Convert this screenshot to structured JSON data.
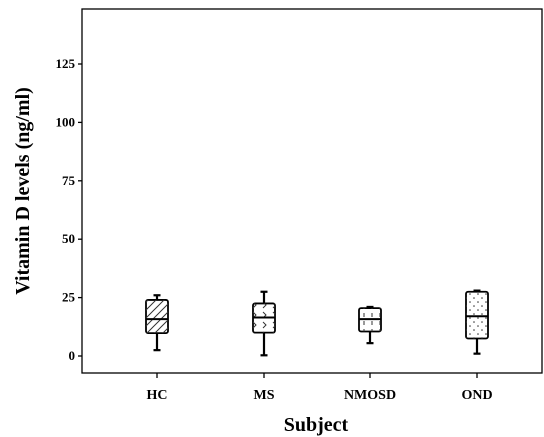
{
  "chart_data": {
    "type": "box",
    "title": "",
    "xlabel": "Subject",
    "ylabel": "Vitamin D levels (ng/ml)",
    "ylim": [
      -6,
      147
    ],
    "yticks": [
      0,
      25,
      50,
      75,
      100,
      125
    ],
    "ytick_labels": [
      "0",
      "25",
      "50",
      "75",
      "100",
      "125"
    ],
    "grid": false,
    "legend": "none",
    "categories": [
      "HC",
      "MS",
      "NMOSD",
      "OND"
    ],
    "boxes": [
      {
        "category": "HC",
        "min": 2.5,
        "q1": 9.8,
        "median": 15.8,
        "q3": 24.0,
        "max": 26.0,
        "pattern": "hatch"
      },
      {
        "category": "MS",
        "min": 0.3,
        "q1": 10.0,
        "median": 16.5,
        "q3": 22.5,
        "max": 27.5,
        "pattern": "chevron"
      },
      {
        "category": "NMOSD",
        "min": 5.5,
        "q1": 10.5,
        "median": 15.8,
        "q3": 20.5,
        "max": 21.0,
        "pattern": "dash"
      },
      {
        "category": "OND",
        "min": 1.0,
        "q1": 7.5,
        "median": 17.0,
        "q3": 27.5,
        "max": 28.0,
        "pattern": "dots"
      }
    ]
  }
}
